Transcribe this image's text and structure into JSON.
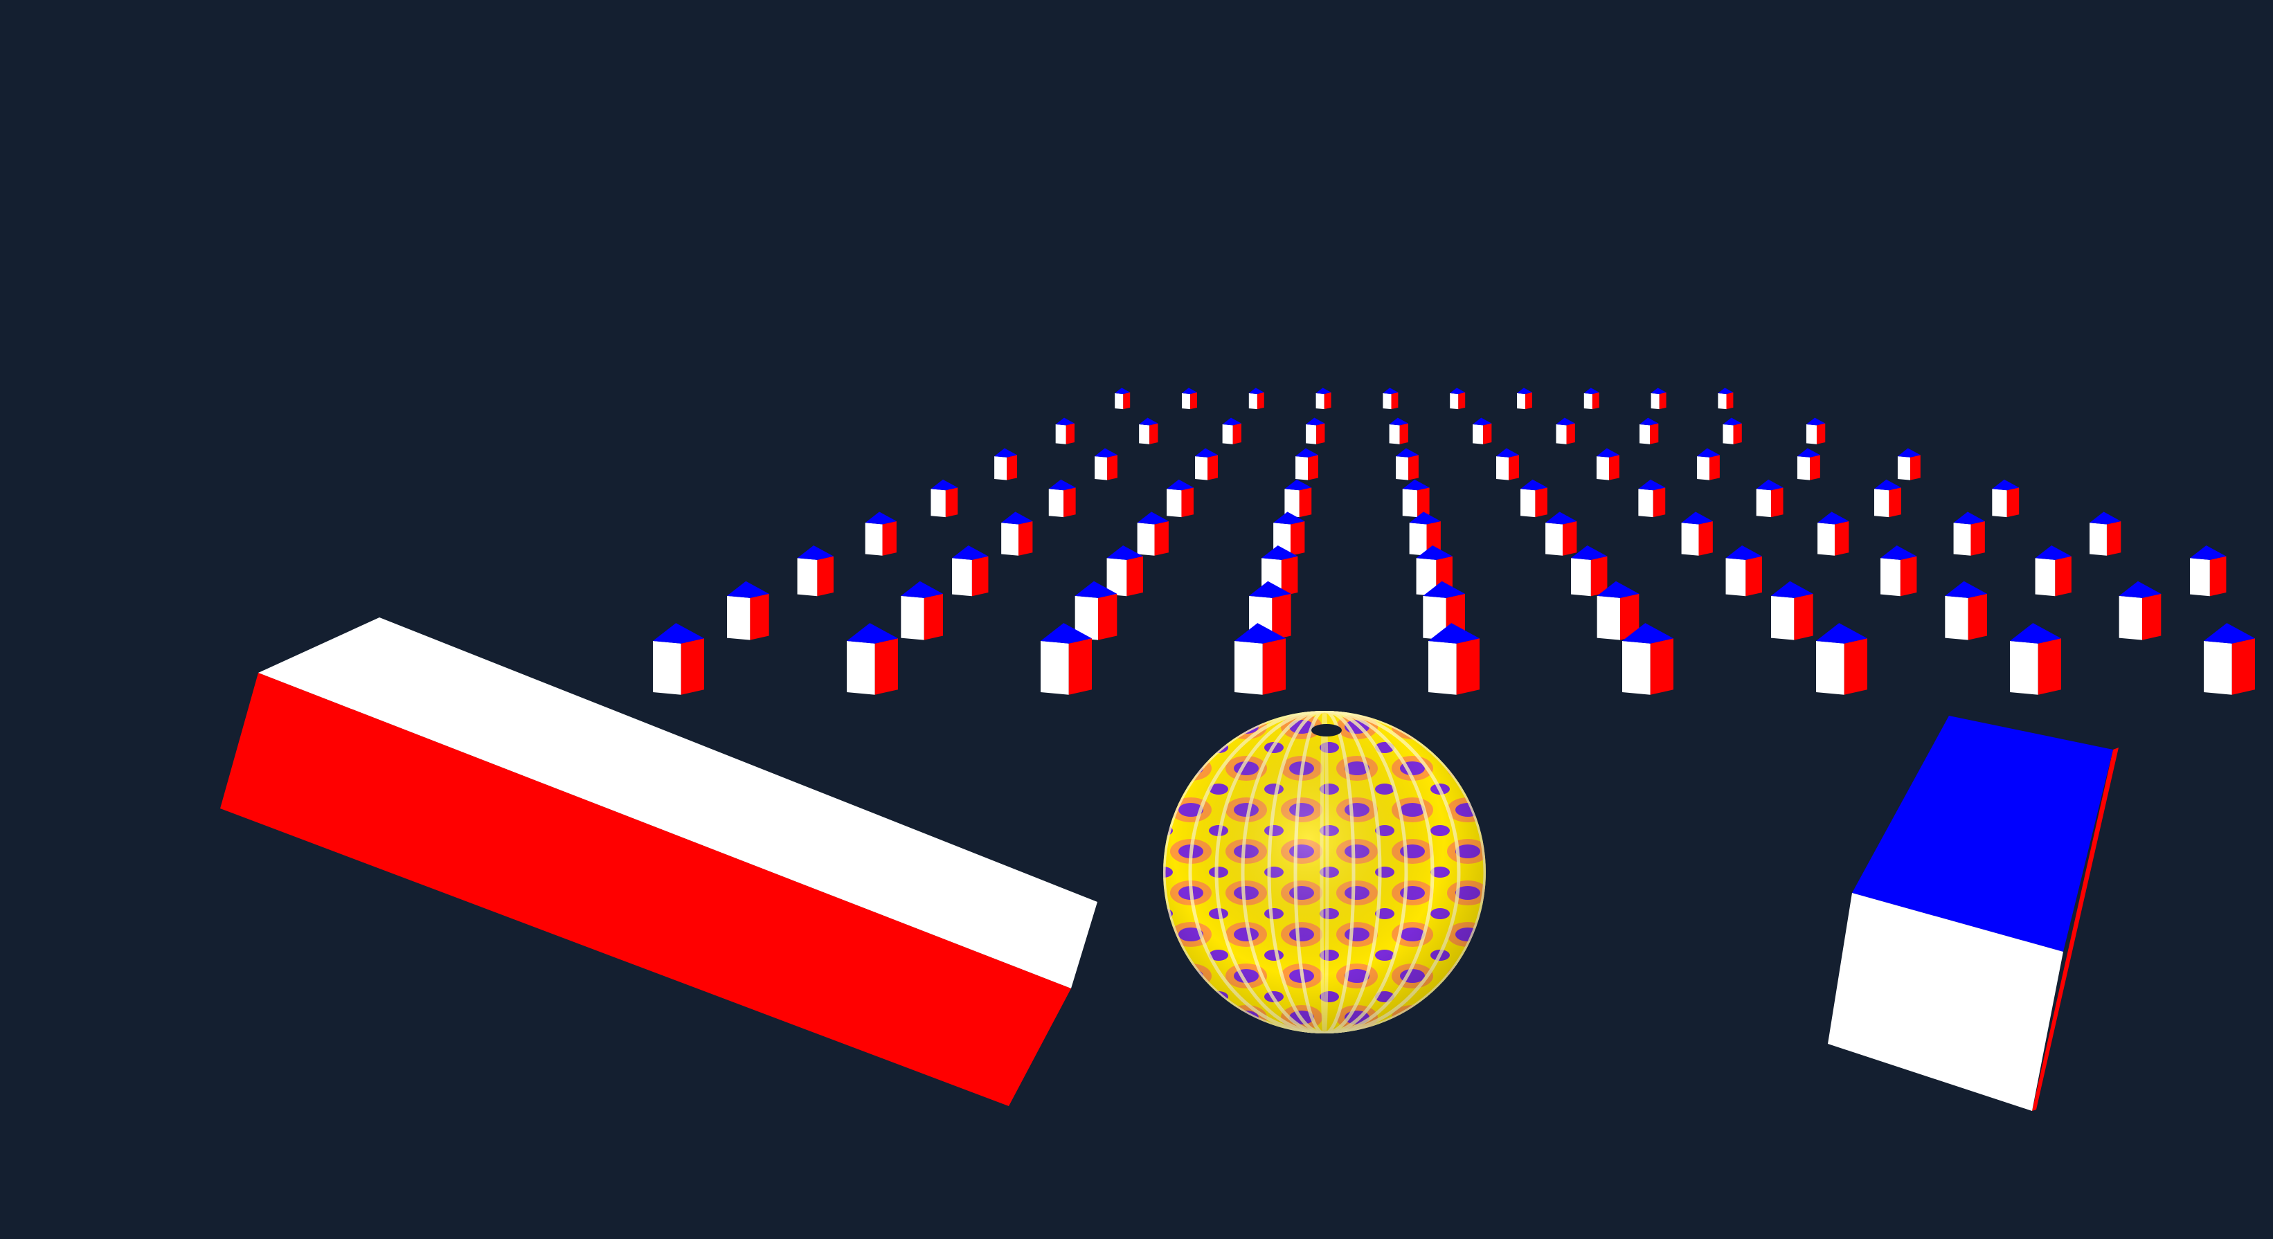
{
  "scene": {
    "background": "#141f30",
    "colors": {
      "red": "#ff0000",
      "white": "#ffffff",
      "blue": "#0000ff",
      "sphere_light": "#ffe600",
      "sphere_mid": "#ff9a3c",
      "sphere_dark": "#7a2bd9",
      "sphere_hole": "#141f30"
    },
    "objects": [
      "cube-grid",
      "large-red-white-box",
      "textured-sphere",
      "blue-white-box"
    ]
  }
}
